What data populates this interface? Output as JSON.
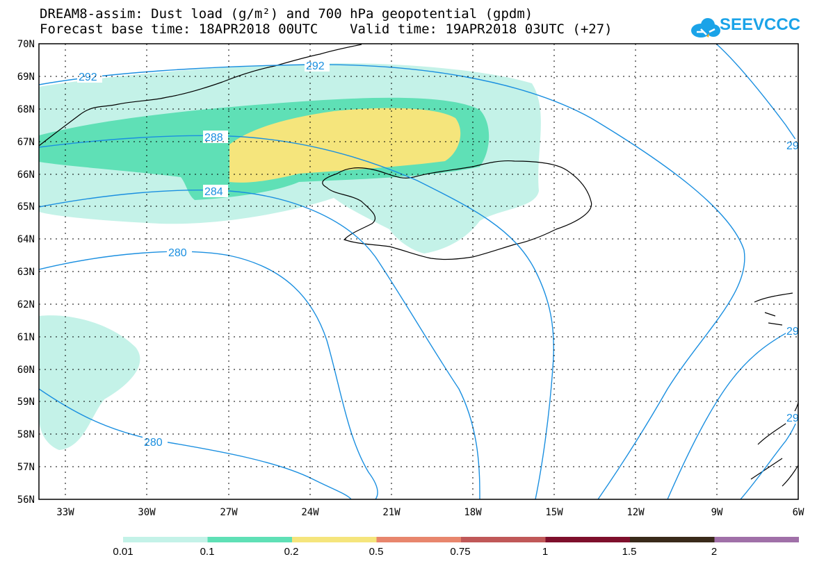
{
  "header": {
    "title_line1": "DREAM8-assim: Dust load (g/m²) and 700 hPa geopotential (gpdm)",
    "title_line2": "Forecast base time: 18APR2018 00UTC    Valid time: 19APR2018 03UTC (+27)"
  },
  "logo": {
    "text": "SEEVCCC",
    "color": "#1aa3e8"
  },
  "map": {
    "lat_labels": [
      "70N",
      "69N",
      "68N",
      "67N",
      "66N",
      "65N",
      "64N",
      "63N",
      "62N",
      "61N",
      "60N",
      "59N",
      "58N",
      "57N",
      "56N"
    ],
    "lon_labels": [
      "33W",
      "30W",
      "27W",
      "24W",
      "21W",
      "18W",
      "15W",
      "12W",
      "9W",
      "6W"
    ],
    "contour_labels": [
      "292",
      "292",
      "288",
      "284",
      "280",
      "280",
      "29",
      "29",
      "29"
    ],
    "contour_color": "#1a8fe0"
  },
  "colorbar": {
    "labels": [
      "0.01",
      "0.1",
      "0.2",
      "0.5",
      "0.75",
      "1",
      "1.5",
      "2"
    ],
    "colors": [
      "#c4f2e8",
      "#5fe0b6",
      "#f5e57c",
      "#e8866d",
      "#c05858",
      "#7e0f2c",
      "#3a2a1a",
      "#a070a8"
    ]
  }
}
